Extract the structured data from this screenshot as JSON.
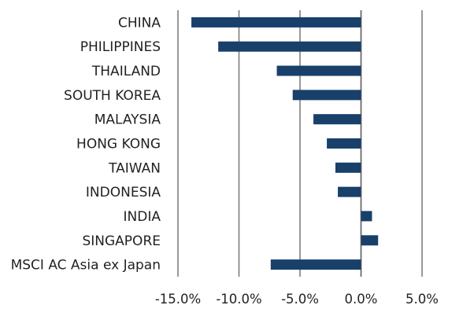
{
  "chart_data": {
    "type": "bar",
    "orientation": "horizontal",
    "title": "",
    "xlabel": "",
    "ylabel": "",
    "categories": [
      "CHINA",
      "PHILIPPINES",
      "THAILAND",
      "SOUTH KOREA",
      "MALAYSIA",
      "HONG KONG",
      "TAIWAN",
      "INDONESIA",
      "INDIA",
      "SINGAPORE",
      "MSCI AC Asia ex Japan"
    ],
    "values": [
      -13.9,
      -11.7,
      -6.9,
      -5.6,
      -3.9,
      -2.8,
      -2.1,
      -1.9,
      0.9,
      1.4,
      -7.4
    ],
    "xlim": [
      -15,
      5
    ],
    "x_ticks": [
      -15,
      -10,
      -5,
      0,
      5
    ],
    "x_tick_labels": [
      "-15.0%",
      "-10.0%",
      "-5.0%",
      "0.0%",
      "5.0%"
    ],
    "grid": "vertical",
    "legend": "none",
    "colors": {
      "bar": "#18406a",
      "grid": "#7f7f7f",
      "text": "#231f20"
    }
  }
}
